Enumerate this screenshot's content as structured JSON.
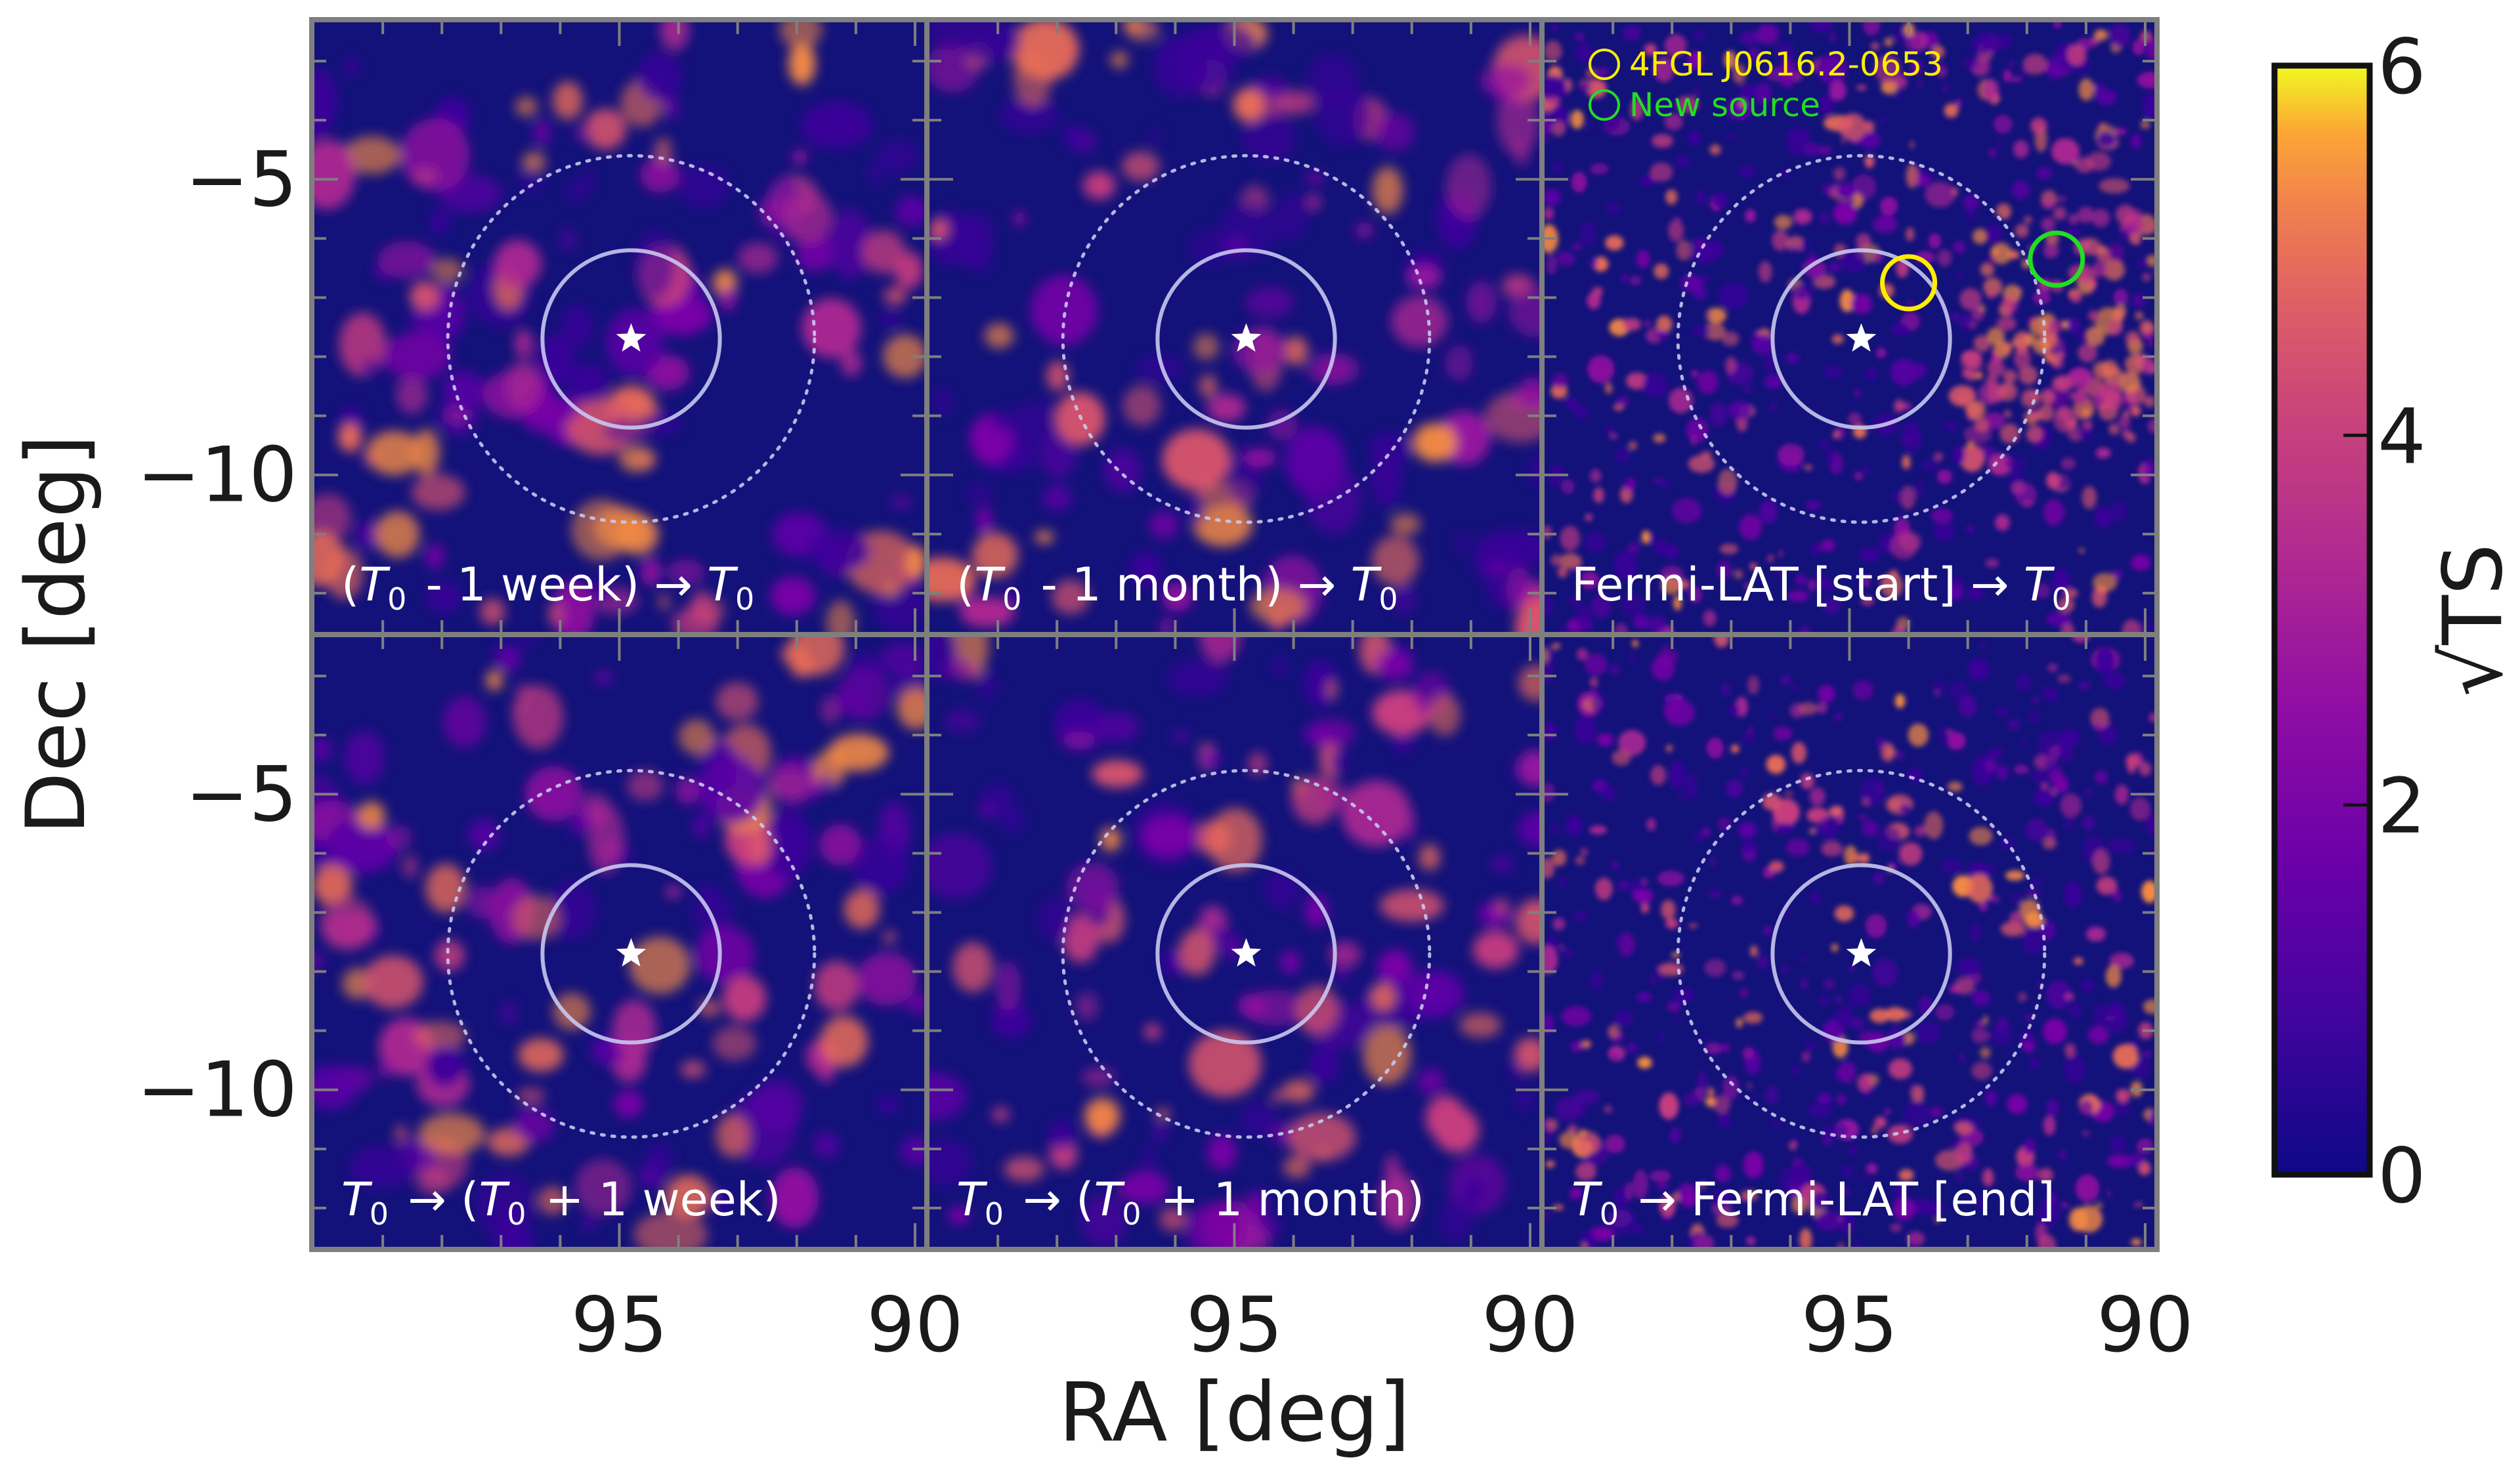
{
  "chart_data": {
    "type": "heatmap",
    "xlabel": "RA [deg]",
    "ylabel": "Dec [deg]",
    "x_ticks": [
      95,
      90
    ],
    "y_ticks": [
      -5,
      -10
    ],
    "xlim": [
      100.2,
      89.8
    ],
    "ylim": [
      -12.7,
      -2.3
    ],
    "grid": "2 rows × 3 columns of sky maps",
    "center_star": {
      "ra": 94.8,
      "dec": -7.7
    },
    "inner_circle_radius_deg": 1.5,
    "outer_circle_radius_deg": 3.1,
    "colorbar": {
      "label": "√TS",
      "ticks": [
        0,
        2,
        4,
        6
      ],
      "range": [
        0,
        6
      ],
      "colormap": "plasma"
    },
    "panels": [
      {
        "label_prefix": "(",
        "label_T": "T",
        "label_sub": "0",
        "label_suffix": " - 1 week) → ",
        "label_T2": "T",
        "label_sub2": "0"
      },
      {
        "label_prefix": "(",
        "label_T": "T",
        "label_sub": "0",
        "label_suffix": " - 1 month) → ",
        "label_T2": "T",
        "label_sub2": "0"
      },
      {
        "label_prefix": "Fermi-LAT [start] → ",
        "label_T": "T",
        "label_sub": "0",
        "label_suffix": "",
        "label_T2": "",
        "label_sub2": ""
      },
      {
        "label_prefix": "",
        "label_T": "T",
        "label_sub": "0",
        "label_suffix": " → (",
        "label_T2": "T",
        "label_sub2": "0",
        "label_tail": " + 1 week)"
      },
      {
        "label_prefix": "",
        "label_T": "T",
        "label_sub": "0",
        "label_suffix": " → (",
        "label_T2": "T",
        "label_sub2": "0",
        "label_tail": " + 1 month)"
      },
      {
        "label_prefix": "",
        "label_T": "T",
        "label_sub": "0",
        "label_suffix": " → Fermi-LAT [end]",
        "label_T2": "",
        "label_sub2": ""
      }
    ],
    "sources": [
      {
        "name": "4FGL J0616.2-0653",
        "color": "#ffee00",
        "ra": 94.0,
        "dec": -6.75,
        "panel": 3
      },
      {
        "name": "New source",
        "color": "#22dd22",
        "ra": 91.5,
        "dec": -6.35,
        "panel": 3
      }
    ]
  },
  "colors": {
    "background_map": "#13127a",
    "frame": "#7f7f7f",
    "circles": "#c8c8f0",
    "star": "#ffffff"
  }
}
